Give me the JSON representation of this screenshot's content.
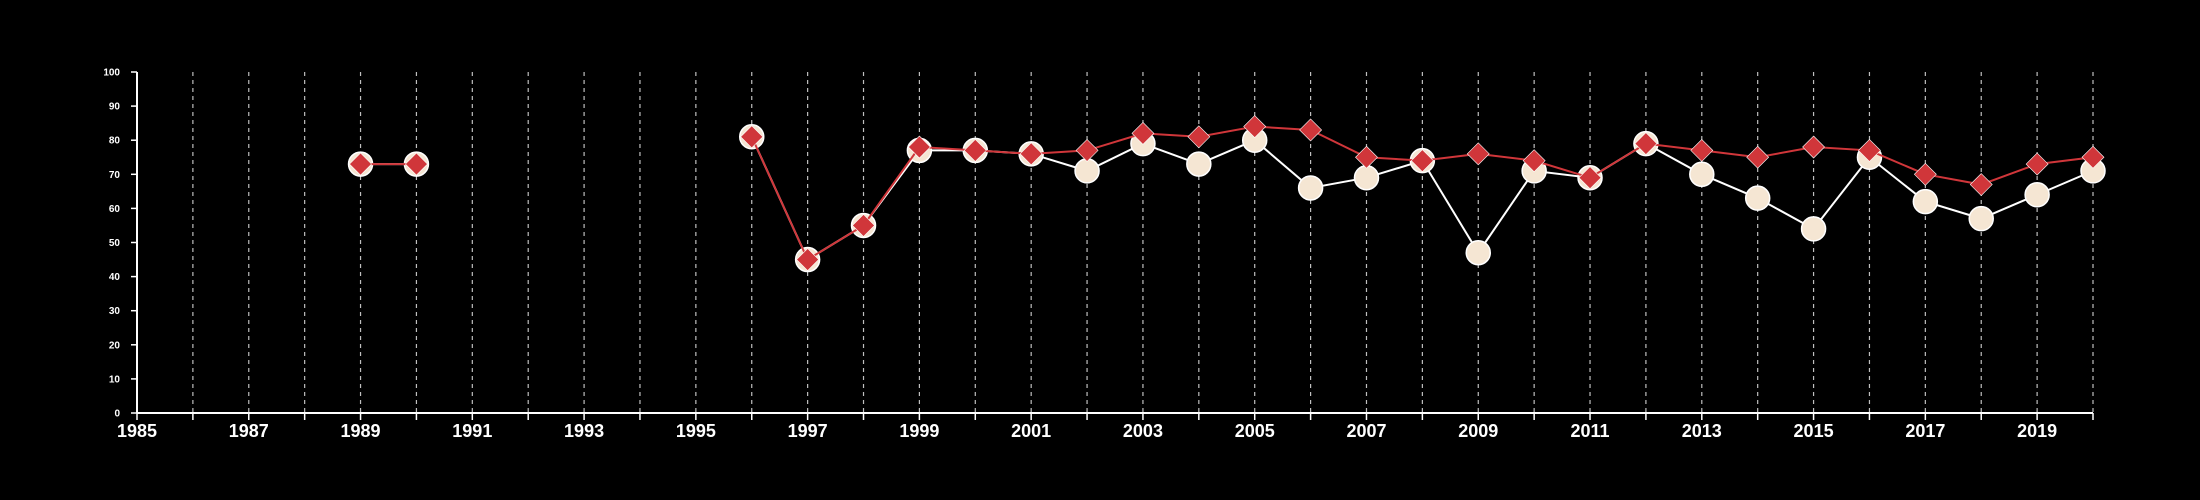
{
  "chart_data": {
    "type": "line",
    "title": "",
    "xlabel": "",
    "ylabel": "",
    "xlim": [
      1985,
      2020
    ],
    "ylim": [
      0,
      100
    ],
    "y_ticks": [
      0,
      10,
      20,
      30,
      40,
      50,
      60,
      70,
      80,
      90,
      100
    ],
    "x_tick_labels": [
      1985,
      1987,
      1989,
      1991,
      1993,
      1995,
      1997,
      1999,
      2001,
      2003,
      2005,
      2007,
      2009,
      2011,
      2013,
      2015,
      2017,
      2019
    ],
    "grid": "vertical dashed lines at every year",
    "legend": "none",
    "series": [
      {
        "marker": "circle",
        "color": "#f5e6d3",
        "line_color": "#ffffff",
        "x": [
          1989,
          1990,
          1996,
          1997,
          1998,
          1999,
          2000,
          2001,
          2002,
          2003,
          2004,
          2005,
          2006,
          2007,
          2008,
          2009,
          2010,
          2011,
          2012,
          2013,
          2014,
          2015,
          2016,
          2017,
          2018,
          2019,
          2020
        ],
        "values": [
          73,
          73,
          81,
          45,
          55,
          77,
          77,
          76,
          71,
          79,
          73,
          80,
          66,
          69,
          74,
          47,
          71,
          69,
          79,
          70,
          63,
          54,
          75,
          62,
          57,
          64,
          71
        ]
      },
      {
        "marker": "diamond",
        "color": "#d0363a",
        "line_color": "#d0363a",
        "x": [
          1989,
          1990,
          1996,
          1997,
          1998,
          1999,
          2000,
          2001,
          2002,
          2003,
          2004,
          2005,
          2006,
          2007,
          2008,
          2009,
          2010,
          2011,
          2012,
          2013,
          2014,
          2015,
          2016,
          2017,
          2018,
          2019,
          2020
        ],
        "values": [
          73,
          73,
          81,
          45,
          55,
          78,
          77,
          76,
          77,
          82,
          81,
          84,
          83,
          75,
          74,
          76,
          74,
          69,
          79,
          77,
          75,
          78,
          77,
          70,
          67,
          73,
          75
        ]
      }
    ]
  }
}
